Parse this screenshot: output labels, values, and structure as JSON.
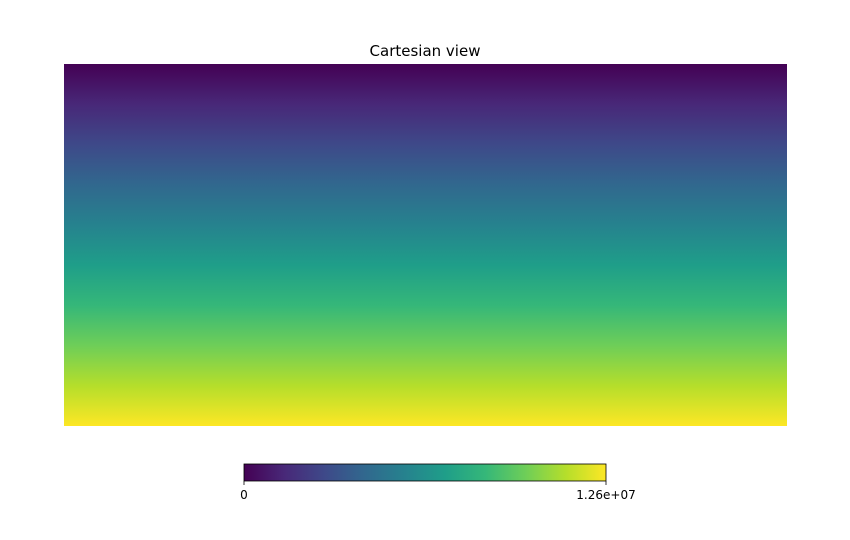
{
  "chart_data": {
    "type": "heatmap",
    "title": "Cartesian view",
    "colormap": "viridis",
    "gradient_direction": "top-to-bottom",
    "value_range": [
      0,
      12600000
    ],
    "colorbar": {
      "orientation": "horizontal",
      "placement": "bottom",
      "tick_labels": [
        "0",
        "1.26e+07"
      ]
    },
    "colors": [
      "#440154",
      "#482878",
      "#3e4989",
      "#31688e",
      "#26828e",
      "#1f9e89",
      "#35b779",
      "#6ece58",
      "#b5de2b",
      "#fde725"
    ],
    "axes_visible": false,
    "grid": false
  }
}
